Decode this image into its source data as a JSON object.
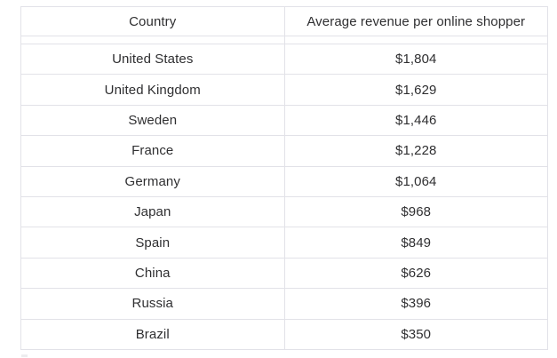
{
  "table": {
    "columns": [
      {
        "label": "Country"
      },
      {
        "label": "Average revenue per online shopper"
      }
    ],
    "rows": [
      {
        "country": "United States",
        "value": "$1,804"
      },
      {
        "country": "United Kingdom",
        "value": "$1,629"
      },
      {
        "country": "Sweden",
        "value": "$1,446"
      },
      {
        "country": "France",
        "value": "$1,228"
      },
      {
        "country": "Germany",
        "value": "$1,064"
      },
      {
        "country": "Japan",
        "value": "$968"
      },
      {
        "country": "Spain",
        "value": "$849"
      },
      {
        "country": "China",
        "value": "$626"
      },
      {
        "country": "Russia",
        "value": "$396"
      },
      {
        "country": "Brazil",
        "value": "$350"
      }
    ],
    "colors": {
      "border": "#e2e2e8",
      "text": "#2f2f31",
      "background": "#ffffff"
    }
  }
}
